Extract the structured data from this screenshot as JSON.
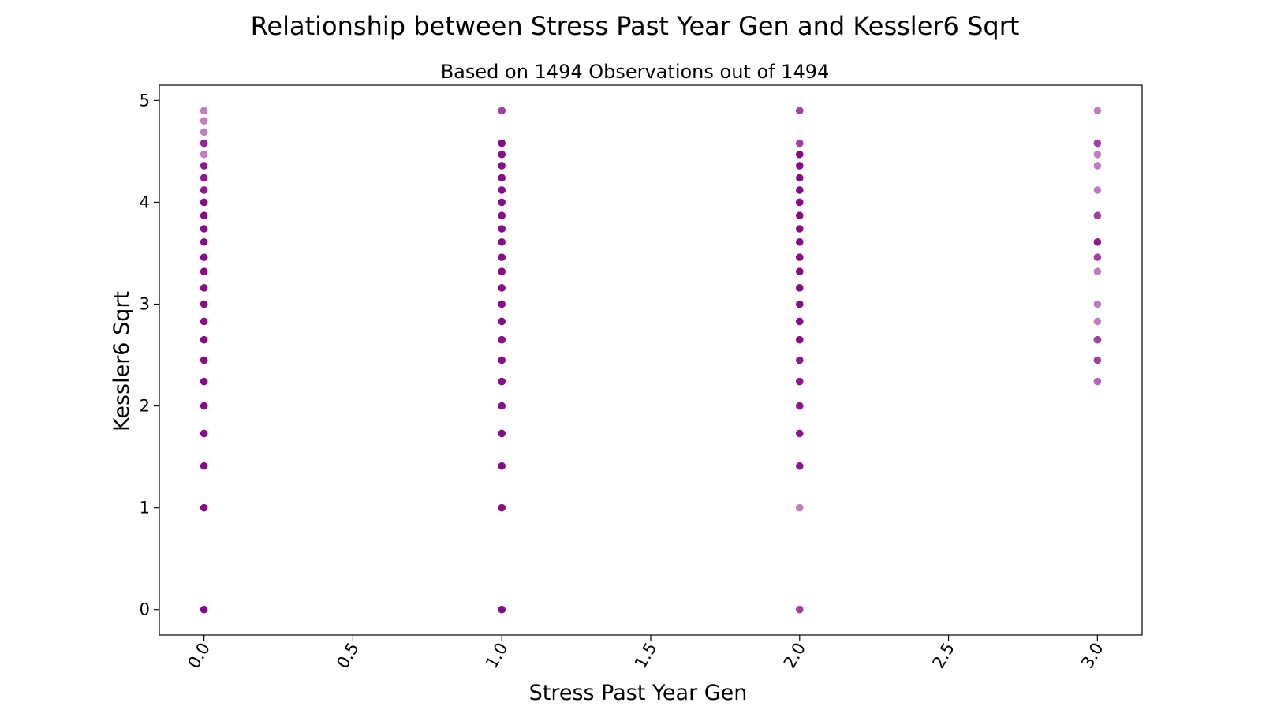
{
  "chart_data": {
    "type": "scatter",
    "title": "Relationship between Stress Past Year Gen and Kessler6 Sqrt",
    "subtitle": "Based on 1494 Observations out of 1494",
    "xlabel": "Stress Past Year Gen",
    "ylabel": "Kessler6 Sqrt",
    "xlim": [
      -0.15,
      3.15
    ],
    "ylim": [
      -0.25,
      5.15
    ],
    "x_ticks": [
      "0.0",
      "0.5",
      "1.0",
      "1.5",
      "2.0",
      "2.5",
      "3.0"
    ],
    "y_ticks": [
      "0",
      "1",
      "2",
      "3",
      "4",
      "5"
    ],
    "grid": false,
    "marker_color": "#800080",
    "marker_alpha": 0.5,
    "series": [
      {
        "x": 0,
        "y": [
          4.9,
          4.8,
          4.69,
          4.58,
          4.47,
          4.36,
          4.24,
          4.12,
          4.0,
          3.87,
          3.74,
          3.61,
          3.46,
          3.32,
          3.16,
          3.0,
          2.83,
          2.65,
          2.45,
          2.24,
          2.0,
          1.73,
          1.41,
          1.0,
          0.0
        ],
        "opacity": [
          0.5,
          0.5,
          0.5,
          0.85,
          0.5,
          0.9,
          0.9,
          0.9,
          0.95,
          0.95,
          0.95,
          0.95,
          0.95,
          0.95,
          0.95,
          0.95,
          0.95,
          0.95,
          0.95,
          0.95,
          0.95,
          0.95,
          0.95,
          0.95,
          0.95
        ]
      },
      {
        "x": 1,
        "y": [
          4.9,
          4.58,
          4.47,
          4.36,
          4.24,
          4.12,
          4.0,
          3.87,
          3.74,
          3.61,
          3.46,
          3.32,
          3.16,
          3.0,
          2.83,
          2.65,
          2.45,
          2.24,
          2.0,
          1.73,
          1.41,
          1.0,
          0.0
        ],
        "opacity": [
          0.75,
          0.95,
          0.95,
          0.95,
          0.95,
          0.95,
          0.95,
          0.95,
          0.95,
          0.95,
          0.95,
          0.95,
          0.95,
          0.95,
          0.95,
          0.95,
          0.95,
          0.95,
          0.95,
          0.95,
          0.95,
          0.95,
          0.95
        ]
      },
      {
        "x": 2,
        "y": [
          4.9,
          4.58,
          4.47,
          4.36,
          4.24,
          4.12,
          4.0,
          3.87,
          3.74,
          3.61,
          3.46,
          3.32,
          3.16,
          3.0,
          2.83,
          2.65,
          2.45,
          2.24,
          2.0,
          1.73,
          1.41,
          1.0,
          0.0
        ],
        "opacity": [
          0.75,
          0.75,
          0.95,
          0.95,
          0.95,
          0.95,
          0.95,
          0.95,
          0.95,
          0.95,
          0.95,
          0.95,
          0.95,
          0.95,
          0.95,
          0.95,
          0.9,
          0.9,
          0.9,
          0.9,
          0.9,
          0.5,
          0.75
        ]
      },
      {
        "x": 3,
        "y": [
          4.9,
          4.58,
          4.47,
          4.36,
          4.12,
          3.87,
          3.61,
          3.46,
          3.32,
          3.0,
          2.83,
          2.65,
          2.45,
          2.24
        ],
        "opacity": [
          0.5,
          0.75,
          0.5,
          0.5,
          0.5,
          0.75,
          0.9,
          0.75,
          0.5,
          0.5,
          0.5,
          0.75,
          0.75,
          0.6
        ]
      }
    ]
  }
}
